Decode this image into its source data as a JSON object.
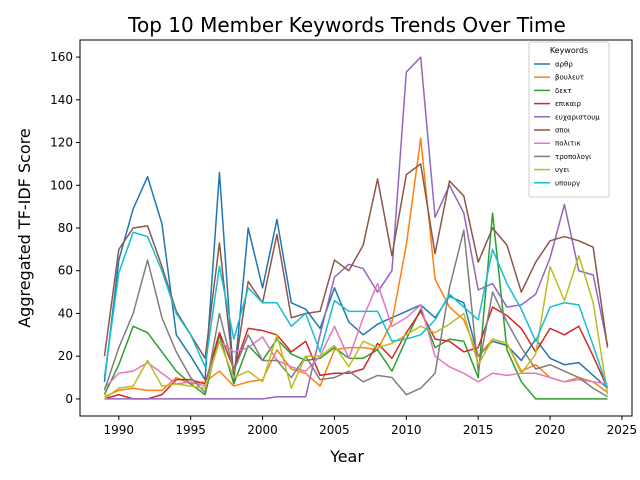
{
  "chart_data": {
    "type": "line",
    "title": "Top 10 Member Keywords Trends Over Time",
    "xlabel": "Year",
    "ylabel": "Aggregated TF-IDF Score",
    "xlim": [
      1987.3,
      2025.7
    ],
    "ylim": [
      -8,
      168
    ],
    "xticks": [
      1990,
      1995,
      2000,
      2005,
      2010,
      2015,
      2020,
      2025
    ],
    "yticks": [
      0,
      20,
      40,
      60,
      80,
      100,
      120,
      140,
      160
    ],
    "legend": {
      "title": "Keywords",
      "position": "top-right"
    },
    "grid": false,
    "x": [
      1989,
      1990,
      1991,
      1992,
      1993,
      1994,
      1995,
      1996,
      1997,
      1998,
      1999,
      2000,
      2001,
      2002,
      2003,
      2004,
      2005,
      2006,
      2007,
      2008,
      2009,
      2010,
      2011,
      2012,
      2013,
      2014,
      2015,
      2016,
      2017,
      2018,
      2019,
      2020,
      2021,
      2022,
      2023,
      2024
    ],
    "series": [
      {
        "name": "αρθρ",
        "color": "#1f77b4",
        "values": [
          8,
          65,
          89,
          104,
          82,
          30,
          20,
          9,
          106,
          8,
          80,
          52,
          84,
          45,
          42,
          33,
          52,
          36,
          30,
          35,
          38,
          41,
          44,
          38,
          48,
          45,
          20,
          27,
          25,
          18,
          28,
          19,
          16,
          17,
          11,
          5
        ]
      },
      {
        "name": "βουλευτ",
        "color": "#ff7f0e",
        "values": [
          1,
          4,
          5,
          4,
          4,
          10,
          7,
          8,
          13,
          6,
          8,
          9,
          23,
          14,
          12,
          6,
          23,
          24,
          24,
          23,
          36,
          72,
          122,
          56,
          43,
          37,
          20,
          28,
          26,
          13,
          16,
          10,
          8,
          10,
          8,
          3
        ]
      },
      {
        "name": "δεκτ",
        "color": "#2ca02c",
        "values": [
          2,
          16,
          34,
          31,
          22,
          13,
          7,
          2,
          30,
          7,
          25,
          18,
          28,
          21,
          18,
          19,
          24,
          19,
          19,
          23,
          13,
          28,
          42,
          24,
          28,
          27,
          10,
          87,
          23,
          8,
          0,
          0,
          0,
          0,
          0,
          0
        ]
      },
      {
        "name": "επικαιρ",
        "color": "#d62728",
        "values": [
          0,
          2,
          0,
          0,
          2,
          9,
          9,
          7,
          31,
          14,
          33,
          32,
          30,
          22,
          27,
          11,
          12,
          12,
          14,
          26,
          19,
          31,
          41,
          28,
          27,
          22,
          24,
          43,
          39,
          33,
          22,
          33,
          30,
          34,
          20,
          5
        ]
      },
      {
        "name": "ευχαριστουμ",
        "color": "#9467bd",
        "values": [
          0,
          0,
          0,
          0,
          0,
          0,
          0,
          0,
          0,
          0,
          0,
          0,
          1,
          1,
          1,
          30,
          57,
          63,
          61,
          50,
          60,
          153,
          160,
          85,
          100,
          87,
          51,
          54,
          43,
          44,
          49,
          66,
          91,
          60,
          58,
          25
        ]
      },
      {
        "name": "σποι",
        "color": "#8c564b",
        "values": [
          20,
          70,
          80,
          81,
          62,
          41,
          30,
          19,
          73,
          11,
          55,
          45,
          77,
          38,
          40,
          41,
          65,
          60,
          72,
          103,
          67,
          105,
          110,
          68,
          102,
          95,
          64,
          80,
          72,
          50,
          64,
          74,
          76,
          74,
          71,
          24
        ]
      },
      {
        "name": "πολιτικ",
        "color": "#e377c2",
        "values": [
          5,
          12,
          13,
          17,
          12,
          7,
          8,
          6,
          27,
          22,
          24,
          29,
          18,
          15,
          13,
          20,
          34,
          19,
          38,
          54,
          34,
          38,
          44,
          20,
          15,
          12,
          8,
          12,
          11,
          12,
          12,
          10,
          8,
          9,
          8,
          7
        ]
      },
      {
        "name": "τροπολογι",
        "color": "#7f7f7f",
        "values": [
          4,
          24,
          40,
          65,
          38,
          22,
          10,
          3,
          40,
          13,
          30,
          18,
          18,
          10,
          20,
          9,
          10,
          13,
          8,
          11,
          10,
          2,
          5,
          12,
          52,
          79,
          13,
          50,
          36,
          24,
          14,
          16,
          13,
          10,
          5,
          1
        ]
      },
      {
        "name": "υγει",
        "color": "#bcbd22",
        "values": [
          0,
          5,
          6,
          18,
          6,
          7,
          6,
          5,
          27,
          10,
          13,
          8,
          30,
          5,
          20,
          20,
          25,
          15,
          27,
          24,
          26,
          30,
          34,
          31,
          35,
          40,
          16,
          28,
          26,
          12,
          21,
          62,
          46,
          67,
          45,
          2
        ]
      },
      {
        "name": "υπουργ",
        "color": "#17becf",
        "values": [
          10,
          59,
          78,
          76,
          60,
          40,
          30,
          15,
          62,
          28,
          52,
          45,
          45,
          34,
          40,
          22,
          46,
          41,
          41,
          41,
          27,
          28,
          30,
          37,
          49,
          43,
          37,
          70,
          54,
          42,
          27,
          43,
          45,
          44,
          25,
          5
        ]
      }
    ]
  }
}
